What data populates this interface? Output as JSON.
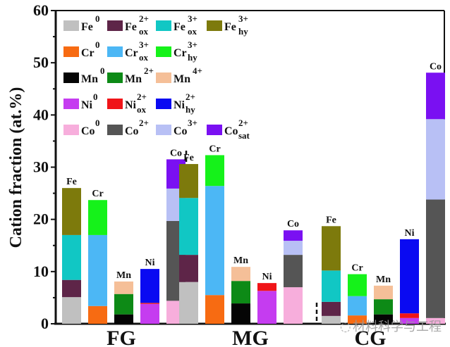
{
  "chart_data": {
    "type": "bar",
    "stacked": true,
    "title": "",
    "xlabel": "",
    "ylabel": "Cation fraction (at.%)",
    "ylim": [
      0,
      60
    ],
    "yticks": [
      0,
      10,
      20,
      30,
      40,
      50,
      60
    ],
    "grid": false,
    "legend_placement": "top-left",
    "groups": [
      "FG",
      "MG",
      "CG"
    ],
    "elements": [
      "Fe",
      "Cr",
      "Mn",
      "Ni",
      "Co"
    ],
    "species": [
      {
        "key": "Fe0",
        "base": "Fe",
        "sup": "0",
        "sub": "",
        "color": "#c0c0c0"
      },
      {
        "key": "Fe2ox",
        "base": "Fe",
        "sup": "2+",
        "sub": "ox",
        "color": "#5e2548"
      },
      {
        "key": "Fe3ox",
        "base": "Fe",
        "sup": "3+",
        "sub": "ox",
        "color": "#11c7c4"
      },
      {
        "key": "Fe3hy",
        "base": "Fe",
        "sup": "3+",
        "sub": "hy",
        "color": "#7d7a0c"
      },
      {
        "key": "Cr0",
        "base": "Cr",
        "sup": "0",
        "sub": "",
        "color": "#f76b12"
      },
      {
        "key": "Cr3ox",
        "base": "Cr",
        "sup": "3+",
        "sub": "ox",
        "color": "#4cb7f5"
      },
      {
        "key": "Cr3hy",
        "base": "Cr",
        "sup": "3+",
        "sub": "hy",
        "color": "#15f21a"
      },
      {
        "key": "Mn0",
        "base": "Mn",
        "sup": "0",
        "sub": "",
        "color": "#050505"
      },
      {
        "key": "Mn2",
        "base": "Mn",
        "sup": "2+",
        "sub": "",
        "color": "#0d8a16"
      },
      {
        "key": "Mn4",
        "base": "Mn",
        "sup": "4+",
        "sub": "",
        "color": "#f5bf98"
      },
      {
        "key": "Ni0",
        "base": "Ni",
        "sup": "0",
        "sub": "",
        "color": "#c53cf0"
      },
      {
        "key": "Ni2ox",
        "base": "Ni",
        "sup": "2+",
        "sub": "ox",
        "color": "#f01418"
      },
      {
        "key": "Ni2hy",
        "base": "Ni",
        "sup": "2+",
        "sub": "hy",
        "color": "#0a0af2"
      },
      {
        "key": "Co0",
        "base": "Co",
        "sup": "0",
        "sub": "",
        "color": "#f7aedc"
      },
      {
        "key": "Co2",
        "base": "Co",
        "sup": "2+",
        "sub": "",
        "color": "#555555"
      },
      {
        "key": "Co3",
        "base": "Co",
        "sup": "3+",
        "sub": "",
        "color": "#b8c0f5"
      },
      {
        "key": "Co2sat",
        "base": "Co",
        "sup": "2+",
        "sub": "sat",
        "color": "#7a10f2"
      }
    ],
    "bars": [
      {
        "group": "FG",
        "label": "Fe",
        "segments": [
          [
            "Fe0",
            5.1
          ],
          [
            "Fe2ox",
            3.3
          ],
          [
            "Fe3ox",
            8.6
          ],
          [
            "Fe3hy",
            9.0
          ]
        ]
      },
      {
        "group": "FG",
        "label": "Cr",
        "segments": [
          [
            "Cr0",
            3.4
          ],
          [
            "Cr3ox",
            13.6
          ],
          [
            "Cr3hy",
            6.7
          ]
        ]
      },
      {
        "group": "FG",
        "label": "Mn",
        "segments": [
          [
            "Mn0",
            1.8
          ],
          [
            "Mn2",
            3.9
          ],
          [
            "Mn4",
            2.4
          ]
        ]
      },
      {
        "group": "FG",
        "label": "Ni",
        "segments": [
          [
            "Ni0",
            3.8
          ],
          [
            "Ni2ox",
            0.2
          ],
          [
            "Ni2hy",
            6.5
          ]
        ]
      },
      {
        "group": "FG",
        "label": "Co",
        "segments": [
          [
            "Co0",
            4.4
          ],
          [
            "Co2",
            15.3
          ],
          [
            "Co3",
            6.2
          ],
          [
            "Co2sat",
            5.6
          ]
        ]
      },
      {
        "group": "MG",
        "label": "Fe",
        "segments": [
          [
            "Fe0",
            8.0
          ],
          [
            "Fe2ox",
            5.2
          ],
          [
            "Fe3ox",
            10.9
          ],
          [
            "Fe3hy",
            6.5
          ]
        ]
      },
      {
        "group": "MG",
        "label": "Cr",
        "segments": [
          [
            "Cr0",
            5.5
          ],
          [
            "Cr3ox",
            20.9
          ],
          [
            "Cr3hy",
            5.9
          ]
        ]
      },
      {
        "group": "MG",
        "label": "Mn",
        "segments": [
          [
            "Mn0",
            3.9
          ],
          [
            "Mn2",
            4.3
          ],
          [
            "Mn4",
            2.7
          ]
        ]
      },
      {
        "group": "MG",
        "label": "Ni",
        "segments": [
          [
            "Ni0",
            6.3
          ],
          [
            "Ni2ox",
            1.5
          ],
          [
            "Ni2hy",
            0
          ]
        ]
      },
      {
        "group": "MG",
        "label": "Co",
        "segments": [
          [
            "Co0",
            7.0
          ],
          [
            "Co2",
            6.2
          ],
          [
            "Co3",
            2.7
          ],
          [
            "Co2sat",
            2.0
          ]
        ]
      },
      {
        "group": "CG",
        "label": "Fe",
        "segments": [
          [
            "Fe0",
            1.5
          ],
          [
            "Fe2ox",
            2.7
          ],
          [
            "Fe3ox",
            6.0
          ],
          [
            "Fe3hy",
            8.5
          ]
        ]
      },
      {
        "group": "CG",
        "label": "Cr",
        "segments": [
          [
            "Cr0",
            1.6
          ],
          [
            "Cr3ox",
            3.7
          ],
          [
            "Cr3hy",
            4.2
          ]
        ]
      },
      {
        "group": "CG",
        "label": "Mn",
        "segments": [
          [
            "Mn0",
            1.8
          ],
          [
            "Mn2",
            2.9
          ],
          [
            "Mn4",
            2.6
          ]
        ]
      },
      {
        "group": "CG",
        "label": "Ni",
        "segments": [
          [
            "Ni0",
            1.1
          ],
          [
            "Ni2ox",
            0.9
          ],
          [
            "Ni2hy",
            14.2
          ]
        ]
      },
      {
        "group": "CG",
        "label": "Co",
        "segments": [
          [
            "Co0",
            1.1
          ],
          [
            "Co2",
            22.7
          ],
          [
            "Co3",
            15.4
          ],
          [
            "Co2sat",
            8.9
          ]
        ]
      }
    ]
  },
  "watermark": {
    "text": "材料科学与工程"
  }
}
